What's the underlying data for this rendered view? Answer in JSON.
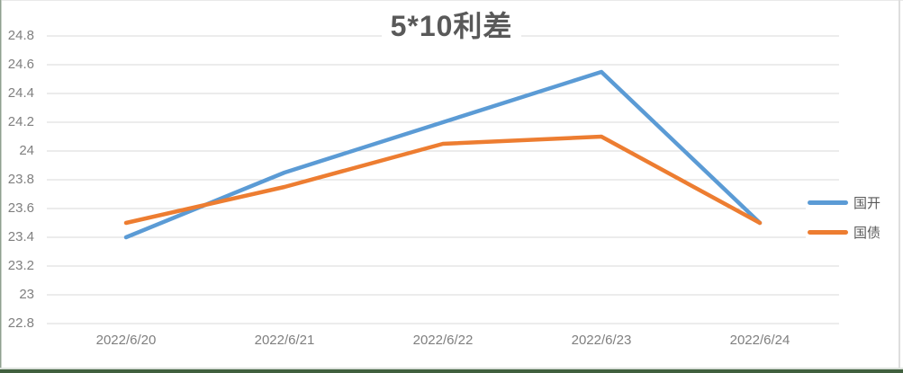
{
  "chart_data": {
    "type": "line",
    "title": "5*10利差",
    "categories": [
      "2022/6/20",
      "2022/6/21",
      "2022/6/22",
      "2022/6/23",
      "2022/6/24"
    ],
    "series": [
      {
        "name": "国开",
        "color": "#5B9BD5",
        "values": [
          23.4,
          23.85,
          24.2,
          24.55,
          23.5
        ]
      },
      {
        "name": "国债",
        "color": "#ED7D31",
        "values": [
          23.5,
          23.75,
          24.05,
          24.1,
          23.5
        ]
      }
    ],
    "ylim": [
      22.8,
      24.8
    ],
    "yticks": [
      24.8,
      24.6,
      24.4,
      24.2,
      24.0,
      23.8,
      23.6,
      23.4,
      23.2,
      23.0,
      22.8
    ],
    "ytick_labels": [
      "24.8",
      "24.6",
      "24.4",
      "24.2",
      "24",
      "23.8",
      "23.6",
      "23.4",
      "23.2",
      "23",
      "22.8"
    ],
    "grid": "horizontal",
    "legend_position": "right"
  },
  "colors": {
    "gridline": "#D9D9D9",
    "axis_text": "#7F7F7F",
    "title_text": "#595959",
    "frame_bottom_green": "#40603E",
    "frame_left_green": "#8FA08F",
    "frame_light_gray": "#DEDEDE"
  }
}
